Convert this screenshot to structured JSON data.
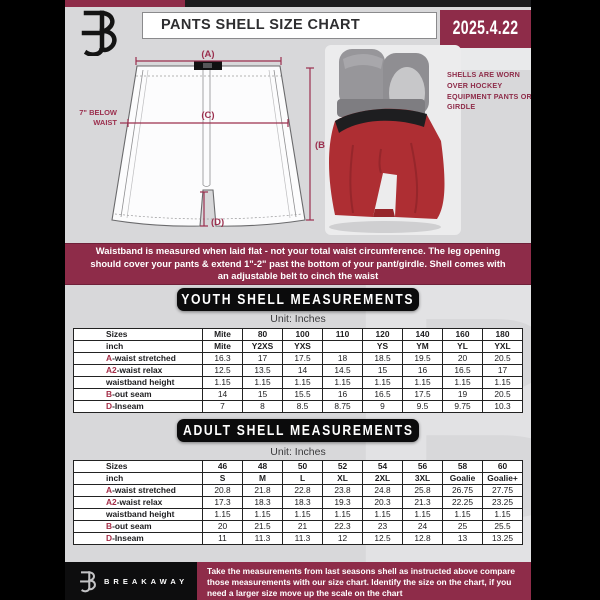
{
  "header": {
    "title": "PANTS SHELL SIZE CHART",
    "date": "2025.4.22"
  },
  "diagram": {
    "label_a": "(A)",
    "label_b": "(B)",
    "label_c": "(C)",
    "label_d": "(D)",
    "below_waist_line1": "7\" BELOW",
    "below_waist_line2": "WAIST"
  },
  "photo": {
    "side_note": "SHELLS ARE WORN OVER HOCKEY EQUIPMENT PANTS OR GIRDLE"
  },
  "info_band": {
    "text": "Waistband is measured when laid flat - not your total waist circumference. The leg opening should cover your pants & extend 1\"-2\" past the bottom of your pant/girdle. Shell comes with an adjustable belt to cinch the waist"
  },
  "youth": {
    "title": "YOUTH SHELL MEASUREMENTS",
    "unit": "Unit: Inches",
    "table": {
      "rows": [
        {
          "header": true,
          "prefix": "",
          "label": "Sizes",
          "values": [
            "Mite",
            "80",
            "100",
            "110",
            "120",
            "140",
            "160",
            "180"
          ]
        },
        {
          "header": true,
          "prefix": "",
          "label": "inch",
          "values": [
            "Mite",
            "Y2XS",
            "YXS",
            "",
            "YS",
            "YM",
            "YL",
            "YXL"
          ]
        },
        {
          "header": false,
          "prefix": "A",
          "label": "-waist stretched",
          "values": [
            "16.3",
            "17",
            "17.5",
            "18",
            "18.5",
            "19.5",
            "20",
            "20.5"
          ]
        },
        {
          "header": false,
          "prefix": "A2",
          "label": "-waist relax",
          "values": [
            "12.5",
            "13.5",
            "14",
            "14.5",
            "15",
            "16",
            "16.5",
            "17"
          ]
        },
        {
          "header": false,
          "prefix": "",
          "label": "waistband height",
          "values": [
            "1.15",
            "1.15",
            "1.15",
            "1.15",
            "1.15",
            "1.15",
            "1.15",
            "1.15"
          ]
        },
        {
          "header": false,
          "prefix": "B",
          "label": "-out seam",
          "values": [
            "14",
            "15",
            "15.5",
            "16",
            "16.5",
            "17.5",
            "19",
            "20.5"
          ]
        },
        {
          "header": false,
          "prefix": "D",
          "label": "-Inseam",
          "values": [
            "7",
            "8",
            "8.5",
            "8.75",
            "9",
            "9.5",
            "9.75",
            "10.3"
          ]
        }
      ]
    }
  },
  "adult": {
    "title": "ADULT SHELL MEASUREMENTS",
    "unit": "Unit: Inches",
    "table": {
      "rows": [
        {
          "header": true,
          "prefix": "",
          "label": "Sizes",
          "values": [
            "46",
            "48",
            "50",
            "52",
            "54",
            "56",
            "58",
            "60"
          ]
        },
        {
          "header": true,
          "prefix": "",
          "label": "inch",
          "values": [
            "S",
            "M",
            "L",
            "XL",
            "2XL",
            "3XL",
            "Goalie",
            "Goalie+"
          ]
        },
        {
          "header": false,
          "prefix": "A",
          "label": "-waist stretched",
          "values": [
            "20.8",
            "21.8",
            "22.8",
            "23.8",
            "24.8",
            "25.8",
            "26.75",
            "27.75"
          ]
        },
        {
          "header": false,
          "prefix": "A2",
          "label": "-waist relax",
          "values": [
            "17.3",
            "18.3",
            "18.3",
            "19.3",
            "20.3",
            "21.3",
            "22.25",
            "23.25"
          ]
        },
        {
          "header": false,
          "prefix": "",
          "label": "waistband height",
          "values": [
            "1.15",
            "1.15",
            "1.15",
            "1.15",
            "1.15",
            "1.15",
            "1.15",
            "1.15"
          ]
        },
        {
          "header": false,
          "prefix": "B",
          "label": "-out seam",
          "values": [
            "20",
            "21.5",
            "21",
            "22.3",
            "23",
            "24",
            "25",
            "25.5"
          ]
        },
        {
          "header": false,
          "prefix": "D",
          "label": "-Inseam",
          "values": [
            "11",
            "11.3",
            "11.3",
            "12",
            "12.5",
            "12.8",
            "13",
            "13.25"
          ]
        }
      ]
    }
  },
  "footer": {
    "brand": "BREAKAWAY",
    "text": "Take the measurements from last seasons shell as instructed above compare those measurements with our size chart. Identify the size on the chart, if you need a larger size move up the scale on the chart"
  },
  "watermark": {
    "letter": "B"
  },
  "colors": {
    "maroon": "#8e2c49",
    "accent_red": "#a32c46",
    "background_gray": "#d8d8da",
    "pill_black": "#0b0b0c"
  }
}
